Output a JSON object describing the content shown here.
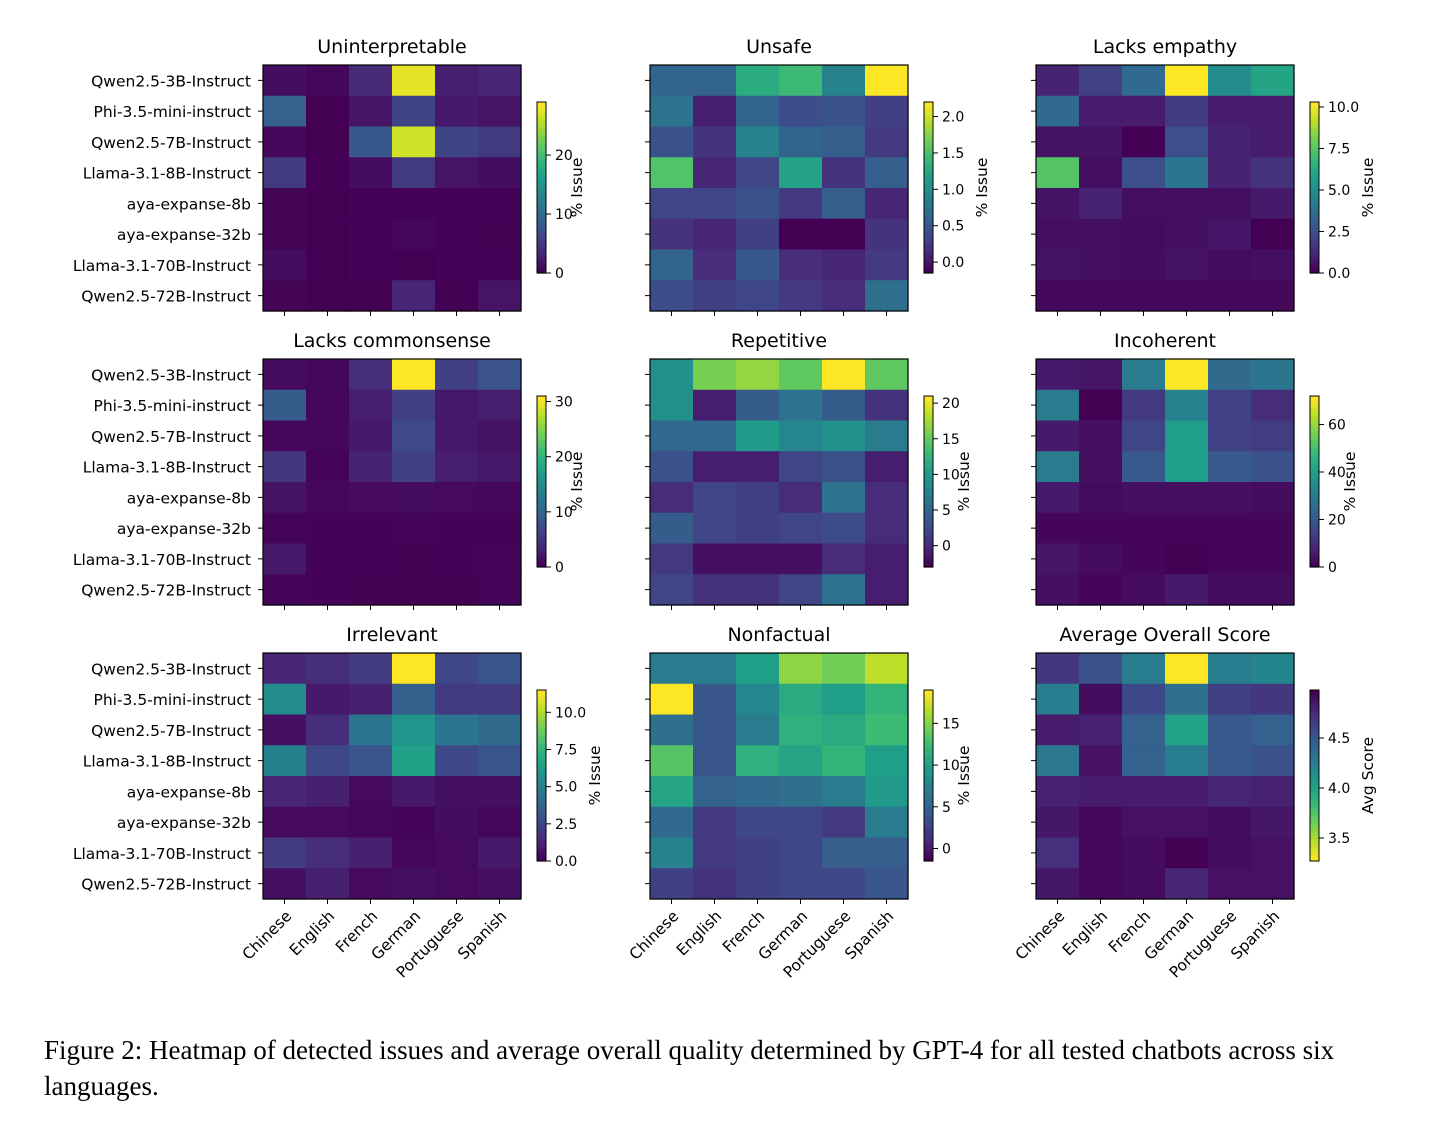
{
  "figure": {
    "caption": "Figure 2: Heatmap of detected issues and average overall quality determined by GPT-4 for all tested chatbots across six languages."
  },
  "chart_data": [
    {
      "type": "heatmap",
      "title": "Uninterpretable",
      "rows": [
        "Qwen2.5-3B-Instruct",
        "Phi-3.5-mini-instruct",
        "Qwen2.5-7B-Instruct",
        "Llama-3.1-8B-Instruct",
        "aya-expanse-8b",
        "aya-expanse-32b",
        "Llama-3.1-70B-Instruct",
        "Qwen2.5-72B-Instruct"
      ],
      "columns": [
        "Chinese",
        "English",
        "French",
        "German",
        "Portuguese",
        "Spanish"
      ],
      "values": [
        [
          1,
          0.5,
          3.5,
          28,
          2.5,
          3
        ],
        [
          9,
          0,
          1.5,
          6,
          2,
          1.5
        ],
        [
          0.5,
          0,
          8,
          27,
          6,
          5
        ],
        [
          5,
          0,
          1,
          5,
          1.5,
          1
        ],
        [
          0.3,
          0,
          0.2,
          0.2,
          0.2,
          0.2
        ],
        [
          0.3,
          0,
          0.2,
          0.5,
          0.2,
          0.1
        ],
        [
          1,
          0,
          0.2,
          0,
          0.2,
          0.2
        ],
        [
          0.3,
          0,
          0,
          3,
          0.1,
          1.5
        ]
      ],
      "colorbar": {
        "label": "% Issue",
        "vmin": 0,
        "vmax": 29,
        "ticks": [
          0,
          10,
          20
        ],
        "reverse": false
      }
    },
    {
      "type": "heatmap",
      "title": "Unsafe",
      "rows": [
        "Qwen2.5-3B-Instruct",
        "Phi-3.5-mini-instruct",
        "Qwen2.5-7B-Instruct",
        "Llama-3.1-8B-Instruct",
        "aya-expanse-8b",
        "aya-expanse-32b",
        "Llama-3.1-70B-Instruct",
        "Qwen2.5-72B-Instruct"
      ],
      "columns": [
        "Chinese",
        "English",
        "French",
        "German",
        "Portuguese",
        "Spanish"
      ],
      "values": [
        [
          0.6,
          0.6,
          1.3,
          1.45,
          0.9,
          2.2
        ],
        [
          0.75,
          0.05,
          0.6,
          0.4,
          0.45,
          0.3
        ],
        [
          0.45,
          0.2,
          0.9,
          0.6,
          0.55,
          0.25
        ],
        [
          1.55,
          0.1,
          0.35,
          1.2,
          0.2,
          0.55
        ],
        [
          0.35,
          0.35,
          0.45,
          0.25,
          0.55,
          0.1
        ],
        [
          0.2,
          0.1,
          0.3,
          -0.15,
          -0.15,
          0.2
        ],
        [
          0.6,
          0.15,
          0.5,
          0.15,
          0.1,
          0.25
        ],
        [
          0.4,
          0.3,
          0.35,
          0.25,
          0.15,
          0.7
        ]
      ],
      "colorbar": {
        "label": "% Issue",
        "vmin": -0.15,
        "vmax": 2.2,
        "ticks": [
          0.0,
          0.5,
          1.0,
          1.5,
          2.0
        ],
        "reverse": false
      }
    },
    {
      "type": "heatmap",
      "title": "Lacks empathy",
      "rows": [
        "Qwen2.5-3B-Instruct",
        "Phi-3.5-mini-instruct",
        "Qwen2.5-7B-Instruct",
        "Llama-3.1-8B-Instruct",
        "aya-expanse-8b",
        "aya-expanse-32b",
        "Llama-3.1-70B-Instruct",
        "Qwen2.5-72B-Instruct"
      ],
      "columns": [
        "Chinese",
        "English",
        "French",
        "German",
        "Portuguese",
        "Spanish"
      ],
      "values": [
        [
          1,
          2,
          3.5,
          10.3,
          5,
          6
        ],
        [
          3.5,
          0.8,
          0.8,
          1.8,
          0.8,
          0.8
        ],
        [
          0.5,
          0.5,
          0,
          2.5,
          1,
          0.8
        ],
        [
          7.5,
          0.4,
          2.5,
          4,
          1,
          1.5
        ],
        [
          0.5,
          1,
          0.4,
          0.4,
          0.4,
          0.7
        ],
        [
          0.4,
          0.4,
          0.3,
          0.4,
          0.6,
          0
        ],
        [
          0.5,
          0.4,
          0.3,
          0.5,
          0.3,
          0.4
        ],
        [
          0.2,
          0.2,
          0.2,
          0.2,
          0.2,
          0.2
        ]
      ],
      "colorbar": {
        "label": "% Issue",
        "vmin": 0,
        "vmax": 10.3,
        "ticks": [
          0.0,
          2.5,
          5.0,
          7.5,
          10.0
        ],
        "reverse": false
      }
    },
    {
      "type": "heatmap",
      "title": "Lacks commonsense",
      "rows": [
        "Qwen2.5-3B-Instruct",
        "Phi-3.5-mini-instruct",
        "Qwen2.5-7B-Instruct",
        "Llama-3.1-8B-Instruct",
        "aya-expanse-8b",
        "aya-expanse-32b",
        "Llama-3.1-70B-Instruct",
        "Qwen2.5-72B-Instruct"
      ],
      "columns": [
        "Chinese",
        "English",
        "French",
        "German",
        "Portuguese",
        "Spanish"
      ],
      "values": [
        [
          1,
          0.5,
          4,
          31,
          6,
          8
        ],
        [
          9,
          0.5,
          2.5,
          6,
          2,
          2.5
        ],
        [
          0.5,
          0.5,
          2,
          7,
          2,
          1.5
        ],
        [
          5,
          0.3,
          3,
          6,
          2.5,
          2
        ],
        [
          1.5,
          0.5,
          0.8,
          1,
          0.8,
          0.5
        ],
        [
          0.3,
          0.2,
          0.2,
          0.3,
          0.2,
          0.2
        ],
        [
          2,
          0.2,
          0.2,
          0.1,
          0.2,
          0.3
        ],
        [
          0.3,
          0.2,
          0.1,
          0.1,
          0.1,
          0.3
        ]
      ],
      "colorbar": {
        "label": "% Issue",
        "vmin": 0,
        "vmax": 31,
        "ticks": [
          0,
          10,
          20,
          30
        ],
        "reverse": false
      }
    },
    {
      "type": "heatmap",
      "title": "Repetitive",
      "rows": [
        "Qwen2.5-3B-Instruct",
        "Phi-3.5-mini-instruct",
        "Qwen2.5-7B-Instruct",
        "Llama-3.1-8B-Instruct",
        "aya-expanse-8b",
        "aya-expanse-32b",
        "Llama-3.1-70B-Instruct",
        "Qwen2.5-72B-Instruct"
      ],
      "columns": [
        "Chinese",
        "English",
        "French",
        "German",
        "Portuguese",
        "Spanish"
      ],
      "values": [
        [
          9,
          16,
          17,
          15,
          21,
          15
        ],
        [
          9,
          -1,
          4,
          6,
          4,
          0.5
        ],
        [
          5,
          5,
          10,
          8,
          9,
          7
        ],
        [
          3,
          -1,
          -1,
          2,
          3,
          -1
        ],
        [
          0,
          2,
          1.5,
          0,
          6,
          0
        ],
        [
          4,
          2,
          1.5,
          2,
          2.5,
          0
        ],
        [
          1,
          -2,
          -2,
          -2,
          0,
          -1
        ],
        [
          2,
          0.5,
          0.5,
          2,
          6,
          -1
        ]
      ],
      "colorbar": {
        "label": "% Issue",
        "vmin": -3,
        "vmax": 21,
        "ticks": [
          0,
          5,
          10,
          15,
          20
        ],
        "reverse": false
      }
    },
    {
      "type": "heatmap",
      "title": "Incoherent",
      "rows": [
        "Qwen2.5-3B-Instruct",
        "Phi-3.5-mini-instruct",
        "Qwen2.5-7B-Instruct",
        "Llama-3.1-8B-Instruct",
        "aya-expanse-8b",
        "aya-expanse-32b",
        "Llama-3.1-70B-Instruct",
        "Qwen2.5-72B-Instruct"
      ],
      "columns": [
        "Chinese",
        "English",
        "French",
        "German",
        "Portuguese",
        "Spanish"
      ],
      "values": [
        [
          5,
          4,
          30,
          72,
          25,
          28
        ],
        [
          30,
          0,
          12,
          32,
          14,
          9
        ],
        [
          5,
          3,
          15,
          40,
          14,
          13
        ],
        [
          30,
          3,
          20,
          40,
          20,
          18
        ],
        [
          5,
          2,
          3,
          3,
          3,
          2
        ],
        [
          1,
          1,
          1,
          1,
          1,
          1
        ],
        [
          4,
          2,
          1,
          0,
          1,
          1
        ],
        [
          3,
          1,
          2,
          5,
          2,
          2
        ]
      ],
      "colorbar": {
        "label": "% Issue",
        "vmin": 0,
        "vmax": 72,
        "ticks": [
          0,
          20,
          40,
          60
        ],
        "reverse": false
      }
    },
    {
      "type": "heatmap",
      "title": "Irrelevant",
      "rows": [
        "Qwen2.5-3B-Instruct",
        "Phi-3.5-mini-instruct",
        "Qwen2.5-7B-Instruct",
        "Llama-3.1-8B-Instruct",
        "aya-expanse-8b",
        "aya-expanse-32b",
        "Llama-3.1-70B-Instruct",
        "Qwen2.5-72B-Instruct"
      ],
      "columns": [
        "Chinese",
        "English",
        "French",
        "German",
        "Portuguese",
        "Spanish"
      ],
      "values": [
        [
          1.2,
          1.5,
          2,
          11.5,
          2.5,
          3
        ],
        [
          5.5,
          0.8,
          1,
          3.5,
          2,
          2
        ],
        [
          0.5,
          1.5,
          4.5,
          6,
          4.5,
          4
        ],
        [
          5,
          2.5,
          3,
          6.5,
          2.5,
          3
        ],
        [
          1.2,
          1,
          0.3,
          0.8,
          0.5,
          0.5
        ],
        [
          0.3,
          0.3,
          0.2,
          0.1,
          0.4,
          0.2
        ],
        [
          2,
          1.5,
          1,
          0.2,
          0.3,
          0.8
        ],
        [
          0.5,
          1,
          0.3,
          0.5,
          0.3,
          0.5
        ]
      ],
      "colorbar": {
        "label": "% Issue",
        "vmin": 0,
        "vmax": 11.5,
        "ticks": [
          0.0,
          2.5,
          5.0,
          7.5,
          10.0
        ],
        "reverse": false
      }
    },
    {
      "type": "heatmap",
      "title": "Nonfactual",
      "rows": [
        "Qwen2.5-3B-Instruct",
        "Phi-3.5-mini-instruct",
        "Qwen2.5-7B-Instruct",
        "Llama-3.1-8B-Instruct",
        "aya-expanse-8b",
        "aya-expanse-32b",
        "Llama-3.1-70B-Instruct",
        "Qwen2.5-72B-Instruct"
      ],
      "columns": [
        "Chinese",
        "English",
        "French",
        "German",
        "Portuguese",
        "Spanish"
      ],
      "values": [
        [
          7,
          7,
          10,
          15.5,
          14.5,
          17
        ],
        [
          19,
          4,
          8,
          11,
          10,
          12
        ],
        [
          6,
          4,
          7,
          11.5,
          11,
          12.5
        ],
        [
          13.5,
          4,
          11.5,
          10.5,
          12,
          10
        ],
        [
          10.5,
          5,
          5.5,
          6,
          7,
          9.5
        ],
        [
          5.5,
          2,
          3,
          3,
          2,
          7
        ],
        [
          7.5,
          2,
          2.5,
          3,
          4.5,
          4.5
        ],
        [
          2.5,
          1.5,
          2.5,
          3,
          3,
          4
        ]
      ],
      "colorbar": {
        "label": "% Issue",
        "vmin": -1.5,
        "vmax": 19,
        "ticks": [
          0,
          5,
          10,
          15
        ],
        "reverse": false
      }
    },
    {
      "type": "heatmap",
      "title": "Average Overall Score",
      "rows": [
        "Qwen2.5-3B-Instruct",
        "Phi-3.5-mini-instruct",
        "Qwen2.5-7B-Instruct",
        "Llama-3.1-8B-Instruct",
        "aya-expanse-8b",
        "aya-expanse-32b",
        "Llama-3.1-70B-Instruct",
        "Qwen2.5-72B-Instruct"
      ],
      "columns": [
        "Chinese",
        "English",
        "French",
        "German",
        "Portuguese",
        "Spanish"
      ],
      "values": [
        [
          4.7,
          4.55,
          4.25,
          3.27,
          4.25,
          4.2
        ],
        [
          4.25,
          4.92,
          4.6,
          4.35,
          4.65,
          4.7
        ],
        [
          4.85,
          4.82,
          4.45,
          4.0,
          4.5,
          4.45
        ],
        [
          4.3,
          4.9,
          4.45,
          4.25,
          4.5,
          4.55
        ],
        [
          4.82,
          4.85,
          4.85,
          4.85,
          4.8,
          4.82
        ],
        [
          4.88,
          4.95,
          4.9,
          4.9,
          4.92,
          4.88
        ],
        [
          4.75,
          4.95,
          4.93,
          4.98,
          4.93,
          4.9
        ],
        [
          4.88,
          4.95,
          4.93,
          4.8,
          4.9,
          4.9
        ]
      ],
      "colorbar": {
        "label": "Avg Score",
        "vmin": 3.27,
        "vmax": 4.98,
        "ticks": [
          3.5,
          4.0,
          4.5
        ],
        "reverse": true
      }
    }
  ]
}
